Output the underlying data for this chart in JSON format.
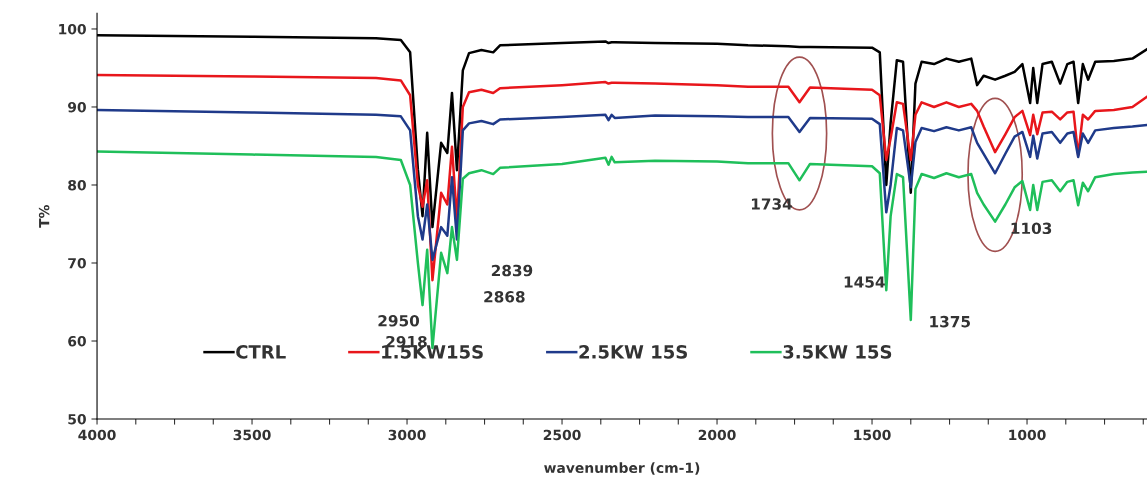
{
  "chart_data": {
    "type": "line",
    "xlabel": "wavenumber (cm-1)",
    "ylabel": "T%",
    "xlim": [
      4000,
      613
    ],
    "ylim": [
      50,
      102
    ],
    "xticks": [
      4000,
      {
        "value": 3875,
        "label": null
      },
      {
        "value": 3750,
        "label": null
      },
      {
        "value": 3625,
        "label": null
      },
      3500,
      {
        "value": 3375,
        "label": null
      },
      {
        "value": 3250,
        "label": null
      },
      {
        "value": 3125,
        "label": null
      },
      3000,
      {
        "value": 2875,
        "label": null
      },
      {
        "value": 2750,
        "label": null
      },
      {
        "value": 2625,
        "label": null
      },
      2500,
      {
        "value": 2375,
        "label": null
      },
      {
        "value": 2250,
        "label": null
      },
      {
        "value": 2125,
        "label": null
      },
      2000,
      {
        "value": 1875,
        "label": null
      },
      {
        "value": 1750,
        "label": null
      },
      {
        "value": 1625,
        "label": null
      },
      1500,
      {
        "value": 1375,
        "label": null
      },
      {
        "value": 1250,
        "label": null
      },
      {
        "value": 1125,
        "label": null
      },
      1000,
      {
        "value": 875,
        "label": null
      },
      {
        "value": 750,
        "label": null
      },
      {
        "value": 625,
        "label": null
      }
    ],
    "yticks": [
      50,
      60,
      70,
      80,
      90,
      100
    ],
    "grid": false,
    "legend": "bottom",
    "marker": "none",
    "line_style": "solid",
    "x": [
      4000,
      3500,
      3100,
      3020,
      2990,
      2965,
      2950,
      2935,
      2918,
      2890,
      2870,
      2855,
      2839,
      2820,
      2800,
      2760,
      2722,
      2700,
      2500,
      2360,
      2350,
      2340,
      2330,
      2200,
      2000,
      1900,
      1770,
      1734,
      1700,
      1500,
      1475,
      1454,
      1440,
      1420,
      1400,
      1375,
      1360,
      1340,
      1300,
      1260,
      1220,
      1180,
      1161,
      1140,
      1103,
      1070,
      1040,
      1015,
      990,
      980,
      967,
      950,
      920,
      893,
      870,
      850,
      835,
      820,
      803,
      780,
      720,
      660,
      613
    ],
    "series": [
      {
        "name": "CTRL",
        "color": "#000000",
        "values": [
          99.2,
          99.0,
          98.8,
          98.6,
          97.0,
          82,
          76,
          86.7,
          74.6,
          85.4,
          84.1,
          91.8,
          81.9,
          94.7,
          96.9,
          97.3,
          97.0,
          97.9,
          98.2,
          98.4,
          98.2,
          98.3,
          98.3,
          98.2,
          98.1,
          97.9,
          97.8,
          97.7,
          97.7,
          97.6,
          97.0,
          80.0,
          88,
          96.0,
          95.8,
          79.0,
          93,
          95.8,
          95.5,
          96.2,
          95.8,
          96.2,
          92.8,
          94.0,
          93.5,
          94.0,
          94.5,
          95.5,
          90.5,
          95.0,
          90.5,
          95.5,
          95.8,
          93.0,
          95.5,
          95.8,
          90.5,
          95.5,
          93.5,
          95.8,
          95.9,
          96.2,
          97.4
        ]
      },
      {
        "name": "1.5KW15S",
        "color": "#e8161b",
        "values": [
          94.1,
          93.9,
          93.7,
          93.4,
          91.5,
          80,
          77.2,
          80.6,
          67.8,
          79,
          77.5,
          84.9,
          75.5,
          90,
          91.9,
          92.2,
          91.8,
          92.4,
          92.8,
          93.2,
          93.0,
          93.1,
          93.1,
          93.0,
          92.8,
          92.6,
          92.6,
          90.6,
          92.5,
          92.2,
          91.5,
          83.2,
          86,
          90.6,
          90.4,
          83.2,
          89,
          90.6,
          90.0,
          90.6,
          90.0,
          90.4,
          89.5,
          87.5,
          84.2,
          86.5,
          88.7,
          89.5,
          86.4,
          89.0,
          86.5,
          89.3,
          89.4,
          88.4,
          89.3,
          89.4,
          83.8,
          89.0,
          88.4,
          89.5,
          89.6,
          90.0,
          91.3
        ]
      },
      {
        "name": "2.5KW 15S",
        "color": "#1f3a8a",
        "values": [
          89.6,
          89.3,
          89.0,
          88.8,
          87,
          76,
          73.0,
          77.5,
          70.4,
          74.6,
          73.5,
          81,
          73,
          87,
          87.9,
          88.2,
          87.8,
          88.4,
          88.7,
          89.0,
          88.3,
          89.0,
          88.6,
          88.9,
          88.8,
          88.7,
          88.7,
          86.8,
          88.6,
          88.5,
          87.8,
          76.5,
          80,
          87.3,
          87.0,
          79.7,
          85.5,
          87.3,
          86.9,
          87.4,
          87.0,
          87.4,
          85.4,
          84.0,
          81.5,
          84.0,
          86.2,
          86.8,
          83.6,
          86.3,
          83.4,
          86.6,
          86.8,
          85.4,
          86.6,
          86.8,
          83.6,
          86.6,
          85.4,
          87.0,
          87.3,
          87.5,
          87.7
        ]
      },
      {
        "name": "3.5KW 15S",
        "color": "#1fbf5a",
        "values": [
          84.3,
          83.9,
          83.6,
          83.2,
          80,
          70,
          64.6,
          71.7,
          59.1,
          71.3,
          68.7,
          74.6,
          70.4,
          80.8,
          81.5,
          81.9,
          81.4,
          82.2,
          82.7,
          83.5,
          82.6,
          83.6,
          82.9,
          83.1,
          83.0,
          82.8,
          82.8,
          80.6,
          82.7,
          82.4,
          81.5,
          66.5,
          76,
          81.4,
          81.0,
          62.7,
          79.5,
          81.4,
          80.9,
          81.5,
          81.0,
          81.4,
          79.0,
          77.5,
          75.3,
          77.5,
          79.7,
          80.5,
          76.8,
          80.0,
          76.8,
          80.4,
          80.6,
          79.2,
          80.4,
          80.6,
          77.4,
          80.3,
          79.2,
          81.0,
          81.4,
          81.6,
          81.7
        ]
      }
    ],
    "annotations": [
      {
        "text": "2950",
        "x": 2950,
        "y": 64.6
      },
      {
        "text": "2918",
        "x": 2918,
        "y": 59.1
      },
      {
        "text": "2868",
        "x": 2870,
        "y": 68.7
      },
      {
        "text": "2839",
        "x": 2839,
        "y": 70.4
      },
      {
        "text": "1454",
        "x": 1454,
        "y": 66.5
      },
      {
        "text": "1375",
        "x": 1375,
        "y": 62.7
      },
      {
        "text": "1734",
        "x": 1734,
        "y": 80.6
      },
      {
        "text": "1103",
        "x": 1103,
        "y": 75.3
      }
    ]
  }
}
